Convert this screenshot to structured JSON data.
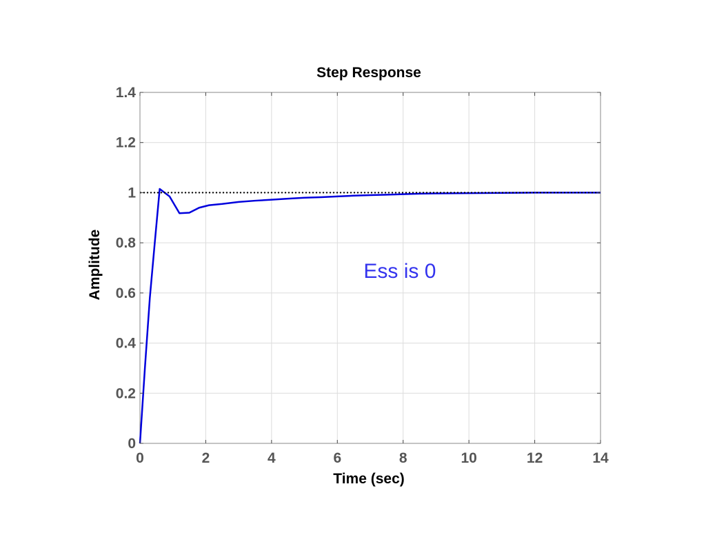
{
  "chart_data": {
    "type": "line",
    "title": "Step Response",
    "xlabel": "Time (sec)",
    "ylabel": "Amplitude",
    "xlim": [
      0,
      14
    ],
    "ylim": [
      0,
      1.4
    ],
    "x_ticks": [
      0,
      2,
      4,
      6,
      8,
      10,
      12,
      14
    ],
    "y_ticks": [
      0,
      0.2,
      0.4,
      0.6,
      0.8,
      1,
      1.2,
      1.4
    ],
    "x_tick_labels": [
      "0",
      "2",
      "4",
      "6",
      "8",
      "10",
      "12",
      "14"
    ],
    "y_tick_labels": [
      "0",
      "0.2",
      "0.4",
      "0.6",
      "0.8",
      "1",
      "1.2",
      "1.4"
    ],
    "grid": true,
    "series": [
      {
        "color": "#0000dd",
        "line_style": "solid",
        "x": [
          0,
          0.15,
          0.3,
          0.45,
          0.6,
          0.9,
          1.2,
          1.5,
          1.8,
          2.1,
          2.5,
          3.0,
          3.5,
          4.0,
          4.5,
          5.0,
          5.5,
          6.0,
          6.5,
          7.0,
          7.5,
          8.0,
          8.5,
          9.0,
          10.0,
          11.0,
          12.0,
          13.0,
          14.0
        ],
        "y": [
          0,
          0.3,
          0.58,
          0.8,
          1.015,
          0.985,
          0.918,
          0.92,
          0.94,
          0.95,
          0.955,
          0.963,
          0.968,
          0.972,
          0.976,
          0.98,
          0.982,
          0.985,
          0.988,
          0.99,
          0.992,
          0.994,
          0.996,
          0.997,
          0.998,
          0.999,
          1.0,
          1.0,
          1.0
        ]
      },
      {
        "color": "#000000",
        "line_style": "dotted",
        "x": [
          0,
          14
        ],
        "y": [
          1,
          1
        ]
      }
    ],
    "annotations": [
      {
        "text": "Ess is 0",
        "x": 7.9,
        "y": 0.66,
        "color": "#3333ee"
      }
    ]
  }
}
